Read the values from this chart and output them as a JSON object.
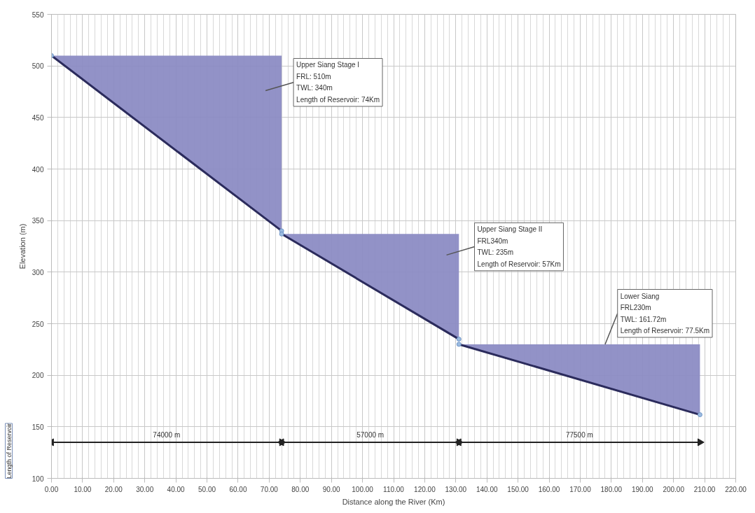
{
  "chart_data": {
    "type": "line",
    "xlabel": "Distance along the River (Km)",
    "ylabel": "Elevation (m)",
    "xlim": [
      0,
      220
    ],
    "ylim": [
      100,
      550
    ],
    "xticks": [
      {
        "value": 0,
        "label": "0.00"
      },
      {
        "value": 10,
        "label": "10.00"
      },
      {
        "value": 20,
        "label": "20.00"
      },
      {
        "value": 30,
        "label": "30.00"
      },
      {
        "value": 40,
        "label": "40.00"
      },
      {
        "value": 50,
        "label": "50.00"
      },
      {
        "value": 60,
        "label": "60.00"
      },
      {
        "value": 70,
        "label": "70.00"
      },
      {
        "value": 80,
        "label": "80.00"
      },
      {
        "value": 90,
        "label": "90.00"
      },
      {
        "value": 100,
        "label": "100.00"
      },
      {
        "value": 110,
        "label": "110.00"
      },
      {
        "value": 120,
        "label": "120.00"
      },
      {
        "value": 130,
        "label": "130.00"
      },
      {
        "value": 140,
        "label": "140.00"
      },
      {
        "value": 150,
        "label": "150.00"
      },
      {
        "value": 160,
        "label": "160.00"
      },
      {
        "value": 170,
        "label": "170.00"
      },
      {
        "value": 180,
        "label": "180.00"
      },
      {
        "value": 190,
        "label": "190.00"
      },
      {
        "value": 200,
        "label": "200.00"
      },
      {
        "value": 210,
        "label": "210.00"
      },
      {
        "value": 220,
        "label": "220.00"
      }
    ],
    "yticks": [
      100,
      150,
      200,
      250,
      300,
      350,
      400,
      450,
      500,
      550
    ],
    "grid": true,
    "marker": "circle",
    "line_style": "solid",
    "series": [
      {
        "color": "#2b2b5c",
        "x": [
          0,
          74
        ],
        "values": [
          510,
          340
        ],
        "lower": [
          510,
          340
        ],
        "upper": [
          510,
          510
        ]
      },
      {
        "color": "#2b2b5c",
        "x": [
          74,
          131
        ],
        "values": [
          337,
          235
        ],
        "lower": [
          337,
          235
        ],
        "upper": [
          337,
          337
        ]
      },
      {
        "color": "#2b2b5c",
        "x": [
          131,
          208.5
        ],
        "values": [
          230,
          161.72
        ],
        "lower": [
          230,
          161.72
        ],
        "upper": [
          230,
          230
        ]
      },
      {
        "type": "line",
        "marker": "triangle",
        "color": "#222222",
        "x": [
          0,
          74
        ],
        "values": [
          135,
          135
        ]
      },
      {
        "type": "line",
        "marker": "triangle",
        "color": "#222222",
        "x": [
          74,
          131
        ],
        "values": [
          135,
          135
        ]
      },
      {
        "type": "line",
        "marker": "triangle",
        "color": "#222222",
        "x": [
          131,
          208.5
        ],
        "values": [
          135,
          135
        ]
      }
    ],
    "annotations": [
      "Upper Siang Stage I\nFRL: 510m\nTWL: 340m\nLength of Reservoir: 74Km",
      "Upper Siang Stage II\nFRL340m\nTWL: 235m\nLength of Reservoir: 57Km",
      {
        "text": "Lower Siang\nFRL230m\nTWL: 161.72m\nLength of Reservoir: 77.5Km",
        "x": 178,
        "y": 230
      },
      {
        "text": "74000 m",
        "x": 37,
        "y": 135
      },
      {
        "text": "57000 m",
        "x": 102.5,
        "y": 135
      },
      {
        "text": "77500 m",
        "x": 169.75,
        "y": 135
      },
      "Length of Reservoir"
    ]
  }
}
